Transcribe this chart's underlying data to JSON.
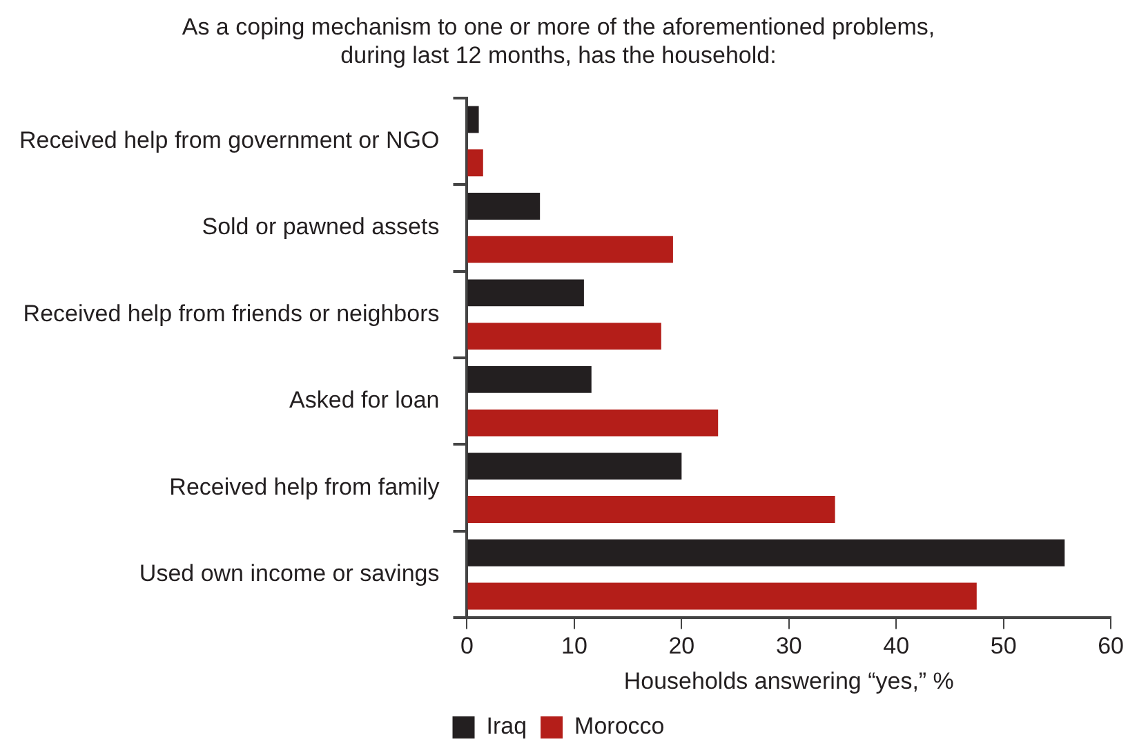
{
  "chart_data": {
    "type": "bar",
    "orientation": "horizontal",
    "title": [
      "As a coping mechanism to one or more of the aforementioned problems,",
      "during last 12 months, has the household:"
    ],
    "xlabel": "Households answering “yes,” %",
    "categories": [
      "Received help from government or NGO",
      "Sold or pawned assets",
      "Received help from friends or neighbors",
      "Asked for loan",
      "Received help from family",
      "Used own income or savings"
    ],
    "series": [
      {
        "name": "Iraq",
        "color": "#231f20",
        "values": [
          1.1,
          6.8,
          10.9,
          11.6,
          20.0,
          55.7
        ]
      },
      {
        "name": "Morocco",
        "color": "#b41e19",
        "values": [
          1.5,
          19.2,
          18.1,
          23.4,
          34.3,
          47.5
        ]
      }
    ],
    "xlim": [
      0,
      60
    ],
    "xticks": [
      0,
      10,
      20,
      30,
      40,
      50,
      60
    ],
    "grid": false,
    "legend": "bottom"
  }
}
